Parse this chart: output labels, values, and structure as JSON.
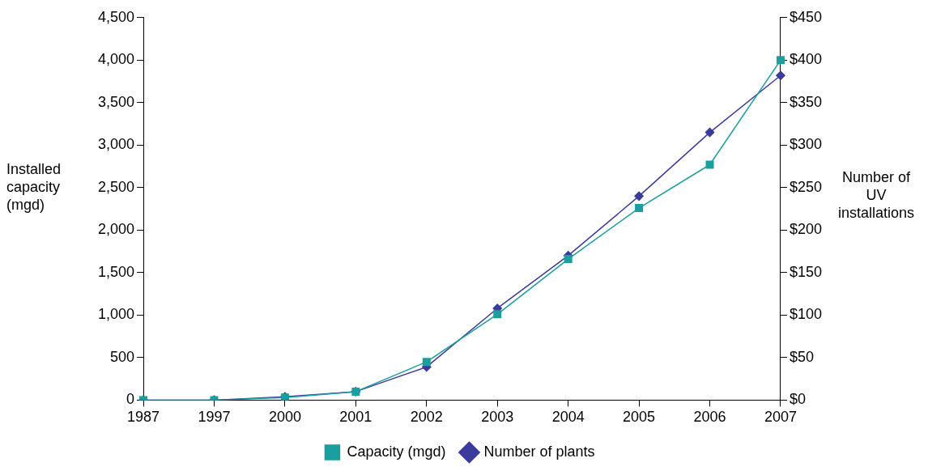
{
  "chart_data": {
    "type": "line",
    "categories": [
      "1987",
      "1997",
      "2000",
      "2001",
      "2002",
      "2003",
      "2004",
      "2005",
      "2006",
      "2007"
    ],
    "ylabel": "Installed capacity (mgd)",
    "y2label": "Number of UV installations",
    "series": [
      {
        "name": "Capacity (mgd)",
        "color": "#1a9e9e",
        "marker": "square",
        "values": [
          0,
          0,
          30,
          100,
          450,
          1010,
          1660,
          2260,
          2770,
          4000
        ]
      },
      {
        "name": "Number of plants",
        "color": "#3b3b9e",
        "marker": "diamond",
        "axis": "y2",
        "values": [
          0,
          0,
          4,
          10,
          39,
          108,
          170,
          240,
          315,
          382
        ]
      }
    ],
    "ylim": [
      0,
      4500
    ],
    "yticks": [
      0,
      500,
      {
        "value": 1000,
        "label": "1,000"
      },
      {
        "value": 1500,
        "label": "1,500"
      },
      {
        "value": 2000,
        "label": "2,000"
      },
      {
        "value": 2500,
        "label": "2,500"
      },
      {
        "value": 3000,
        "label": "3,000"
      },
      {
        "value": 3500,
        "label": "3,500"
      },
      {
        "value": 4000,
        "label": "4,000"
      },
      {
        "value": 4500,
        "label": "4,500"
      }
    ],
    "y2lim": [
      0,
      450
    ],
    "y2ticks": [
      {
        "value": 0,
        "label": "$0"
      },
      {
        "value": 50,
        "label": "$50"
      },
      {
        "value": 100,
        "label": "$100"
      },
      {
        "value": 150,
        "label": "$150"
      },
      {
        "value": 200,
        "label": "$200"
      },
      {
        "value": 250,
        "label": "$250"
      },
      {
        "value": 300,
        "label": "$300"
      },
      {
        "value": 350,
        "label": "$350"
      },
      {
        "value": 400,
        "label": "$400"
      },
      {
        "value": 450,
        "label": "$450"
      }
    ],
    "grid": false,
    "legend": "bottom"
  }
}
